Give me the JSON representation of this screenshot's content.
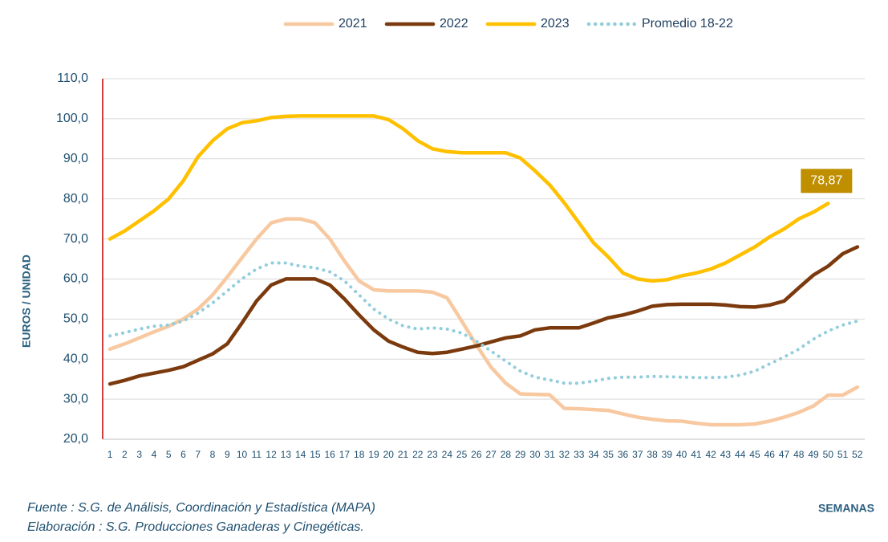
{
  "chart_data": {
    "type": "line",
    "y_axis_label": "EUROS / UNIDAD",
    "x_axis_label": "SEMANAS",
    "notes": [
      "Fuente :  S.G. de Análisis, Coordinación y Estadística (MAPA)",
      "Elaboración : S.G. Producciones Ganaderas y Cinegéticas."
    ],
    "legend_position": "top",
    "grid": true,
    "categories": [
      "1",
      "2",
      "3",
      "4",
      "5",
      "6",
      "7",
      "8",
      "9",
      "10",
      "11",
      "12",
      "13",
      "14",
      "15",
      "16",
      "17",
      "18",
      "19",
      "20",
      "21",
      "22",
      "23",
      "24",
      "25",
      "26",
      "27",
      "28",
      "29",
      "30",
      "31",
      "32",
      "33",
      "34",
      "35",
      "36",
      "37",
      "38",
      "39",
      "40",
      "41",
      "42",
      "43",
      "44",
      "45",
      "46",
      "47",
      "48",
      "49",
      "50",
      "51",
      "52"
    ],
    "ylim": [
      20,
      110
    ],
    "yticks": [
      {
        "value": 20,
        "label": "20,0"
      },
      {
        "value": 30,
        "label": "30,0"
      },
      {
        "value": 40,
        "label": "40,0"
      },
      {
        "value": 50,
        "label": "50,0"
      },
      {
        "value": 60,
        "label": "60,0"
      },
      {
        "value": 70,
        "label": "70,0"
      },
      {
        "value": 80,
        "label": "80,0"
      },
      {
        "value": 90,
        "label": "90,0"
      },
      {
        "value": 100,
        "label": "100,0"
      },
      {
        "value": 110,
        "label": "110,0"
      }
    ],
    "series": [
      {
        "name": "2021",
        "color": "#f8c9a0",
        "line_style": "solid",
        "values": [
          42.5,
          43.8,
          45.3,
          46.8,
          48.2,
          50,
          52.5,
          56,
          60.5,
          65.3,
          70,
          74,
          75,
          75,
          74,
          70,
          64.5,
          59.5,
          57.3,
          57,
          57,
          57,
          56.7,
          55.3,
          49.5,
          43.5,
          38,
          34,
          31.3,
          31.2,
          31.1,
          27.7,
          27.6,
          27.4,
          27.2,
          26.3,
          25.5,
          25,
          24.6,
          24.5,
          24,
          23.6,
          23.6,
          23.6,
          23.8,
          24.5,
          25.5,
          26.7,
          28.3,
          31,
          31,
          33
        ]
      },
      {
        "name": "2022",
        "color": "#7b3a0e",
        "line_style": "solid",
        "values": [
          33.8,
          34.7,
          35.8,
          36.5,
          37.2,
          38.1,
          39.7,
          41.3,
          43.8,
          49,
          54.5,
          58.5,
          60,
          60,
          60,
          58.5,
          55,
          51,
          47.3,
          44.5,
          43,
          41.7,
          41.4,
          41.7,
          42.5,
          43.3,
          44.3,
          45.3,
          45.8,
          47.3,
          47.8,
          47.8,
          47.8,
          49,
          50.3,
          51,
          52,
          53.2,
          53.6,
          53.7,
          53.7,
          53.7,
          53.5,
          53.1,
          53,
          53.5,
          54.5,
          57.8,
          61,
          63.2,
          66.3,
          68
        ]
      },
      {
        "name": "2023",
        "color": "#ffc000",
        "line_style": "solid",
        "values": [
          70,
          72,
          74.5,
          77,
          80,
          84.5,
          90.5,
          94.5,
          97.5,
          99,
          99.5,
          100.3,
          100.6,
          100.7,
          100.7,
          100.7,
          100.7,
          100.7,
          100.7,
          99.8,
          97.5,
          94.5,
          92.5,
          91.8,
          91.5,
          91.5,
          91.5,
          91.5,
          90.2,
          87,
          83.5,
          79,
          74,
          69,
          65.5,
          61.5,
          60,
          59.5,
          59.8,
          60.8,
          61.5,
          62.5,
          64,
          66,
          68,
          70.5,
          72.5,
          75,
          76.7,
          78.87,
          null,
          null
        ],
        "value_labels": [
          null,
          null,
          null,
          null,
          null,
          null,
          null,
          null,
          null,
          null,
          null,
          null,
          null,
          null,
          null,
          null,
          null,
          null,
          null,
          null,
          null,
          null,
          null,
          null,
          null,
          null,
          null,
          null,
          null,
          null,
          null,
          null,
          null,
          null,
          null,
          null,
          null,
          null,
          null,
          null,
          null,
          null,
          null,
          null,
          null,
          null,
          null,
          null,
          null,
          "78,87",
          null,
          null
        ],
        "label_color": "#bf8f00"
      },
      {
        "name": "Promedio 18-22",
        "color": "#92cddc",
        "line_style": "dotted",
        "values": [
          45.8,
          46.6,
          47.5,
          48.2,
          48.5,
          49.5,
          51.5,
          54,
          57,
          60,
          62.5,
          64,
          64,
          63.2,
          62.8,
          61.8,
          59.5,
          56,
          52.5,
          50,
          48.3,
          47.5,
          47.8,
          47.5,
          46.5,
          44.5,
          42,
          39.5,
          37,
          35.5,
          34.8,
          34,
          34,
          34.5,
          35.2,
          35.5,
          35.5,
          35.7,
          35.6,
          35.5,
          35.4,
          35.4,
          35.5,
          36,
          37,
          38.8,
          40.5,
          42.5,
          45,
          47,
          48.5,
          49.5
        ]
      }
    ]
  }
}
